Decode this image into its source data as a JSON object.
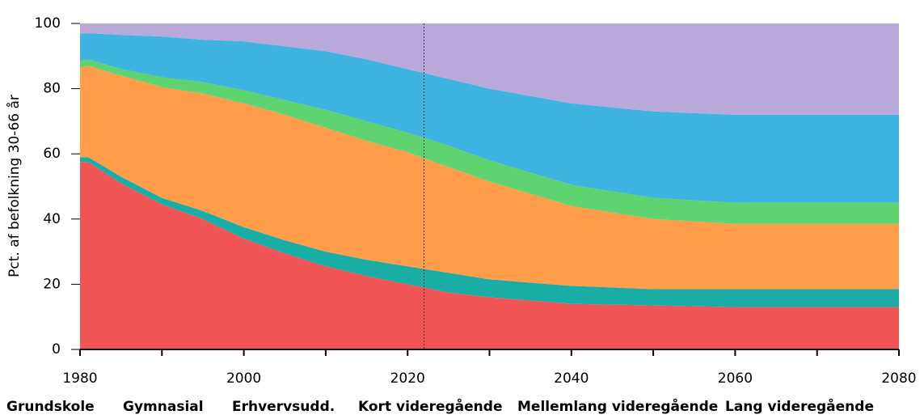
{
  "chart_data": {
    "type": "stacked_area",
    "ylabel": "Pct. af befolkning 30-66 år",
    "x": [
      1980,
      1981,
      1985,
      1990,
      1995,
      2000,
      2005,
      2010,
      2015,
      2020,
      2025,
      2030,
      2040,
      2050,
      2060,
      2070,
      2080
    ],
    "series": [
      {
        "name": "Grundskole",
        "color": "#f05454",
        "values": [
          57.5,
          57.5,
          51,
          44.5,
          40,
          34,
          29.5,
          25.5,
          22.5,
          20,
          17.5,
          16,
          14,
          13.5,
          13,
          13,
          13
        ]
      },
      {
        "name": "Gymnasial",
        "color": "#1aada5",
        "values": [
          1.5,
          1.5,
          2,
          2,
          2.5,
          3.5,
          4,
          4.5,
          5,
          5.5,
          6,
          5.5,
          5.5,
          5,
          5.5,
          5.5,
          5.5
        ]
      },
      {
        "name": "Erhvervsudd.",
        "color": "#ff9d4a",
        "values": [
          27.5,
          28,
          31,
          34,
          36,
          38,
          38.5,
          38,
          36.5,
          35,
          32.5,
          30,
          24.5,
          21.5,
          20,
          20,
          20
        ]
      },
      {
        "name": "Kort videregående",
        "color": "#5fd36f",
        "values": [
          2,
          2,
          2,
          3,
          3.5,
          4,
          4.5,
          5.5,
          6,
          6,
          6.5,
          6.5,
          6.5,
          6.5,
          6.5,
          6.5,
          6.5
        ]
      },
      {
        "name": "Mellemlang videregående",
        "color": "#40b4e0",
        "values": [
          8.5,
          8,
          10.5,
          12.5,
          13,
          15,
          16.5,
          18,
          19,
          19.5,
          20.5,
          22,
          25,
          26.5,
          27,
          27,
          27
        ]
      },
      {
        "name": "Lang videregående",
        "color": "#b9a9da",
        "values": [
          3,
          3,
          3.5,
          4,
          5,
          5.5,
          7,
          8.5,
          11,
          14,
          17,
          20,
          24.5,
          27,
          28,
          28,
          28
        ]
      }
    ],
    "xlim": [
      1980,
      2080
    ],
    "xticks": [
      1980,
      2000,
      2020,
      2040,
      2060,
      2080
    ],
    "xminorticks": [
      1990,
      2010,
      2030,
      2050,
      2070
    ],
    "ylim": [
      0,
      100
    ],
    "yticks": [
      0,
      20,
      40,
      60,
      80,
      100
    ],
    "vline": 2022,
    "legend": "bottom"
  }
}
